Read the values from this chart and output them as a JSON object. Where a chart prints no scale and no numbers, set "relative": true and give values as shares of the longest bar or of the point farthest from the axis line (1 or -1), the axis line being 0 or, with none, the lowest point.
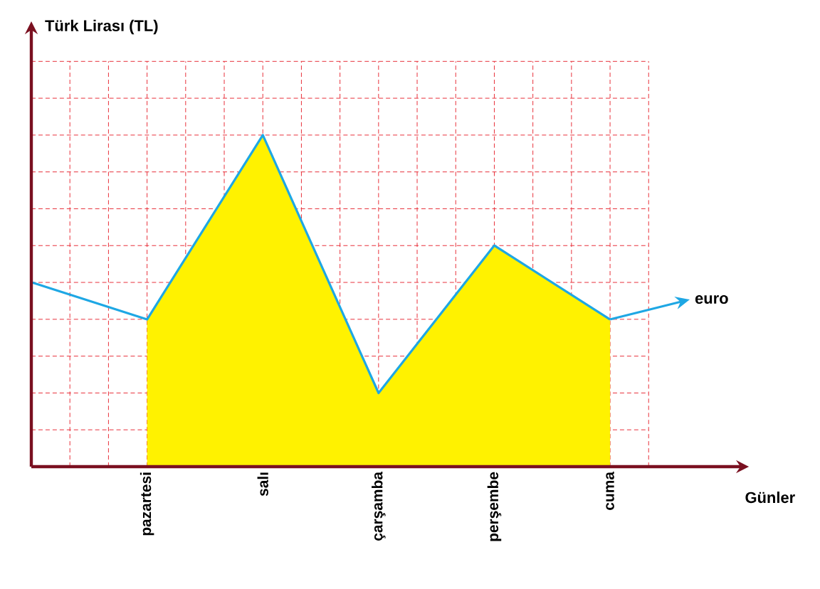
{
  "chart_data": {
    "type": "line",
    "relative": true,
    "annotations": [
      "Türk Lirası (TL)",
      "Günler"
    ],
    "categories": [
      null,
      "pazartesi",
      "salı",
      "çarşamba",
      "perşembe",
      "cuma"
    ],
    "series": [
      {
        "type": "area",
        "color": "#fff200",
        "values": [
          null,
          0.444,
          1,
          0.222,
          0.667,
          0.444
        ]
      },
      {
        "name": "euro",
        "color": "#1ea7e4",
        "values": [
          0.556,
          0.444,
          1,
          0.222,
          0.667,
          0.444
        ]
      }
    ],
    "grid": true,
    "legend": "right",
    "marker": "none",
    "line_style": "solid"
  }
}
